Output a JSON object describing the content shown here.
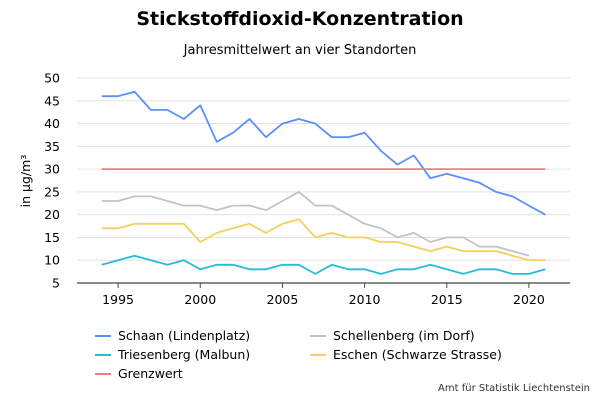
{
  "chart_data": {
    "type": "line",
    "title": "Stickstoffdioxid-Konzentration",
    "subtitle": "Jahresmittelwert an vier Standorten",
    "ylabel": "in µg/m³",
    "xlabel": "",
    "xlim": [
      1992.5,
      2022.5
    ],
    "ylim": [
      5,
      50
    ],
    "xticks": [
      1995,
      2000,
      2005,
      2010,
      2015,
      2020
    ],
    "yticks": [
      5,
      10,
      15,
      20,
      25,
      30,
      35,
      40,
      45,
      50
    ],
    "grid": true,
    "legend_position": "bottom",
    "series": [
      {
        "name": "Schaan (Lindenplatz)",
        "color": "#5b8ff9",
        "x": [
          1994,
          1995,
          1996,
          1997,
          1998,
          1999,
          2000,
          2001,
          2002,
          2003,
          2004,
          2005,
          2006,
          2007,
          2008,
          2009,
          2010,
          2011,
          2012,
          2013,
          2014,
          2015,
          2016,
          2017,
          2018,
          2019,
          2020,
          2021
        ],
        "values": [
          46,
          46,
          47,
          43,
          43,
          41,
          44,
          36,
          38,
          41,
          37,
          40,
          41,
          40,
          37,
          37,
          38,
          34,
          31,
          33,
          28,
          29,
          28,
          27,
          25,
          24,
          22,
          20
        ]
      },
      {
        "name": "Schellenberg (im Dorf)",
        "color": "#c3c3c3",
        "x": [
          1994,
          1995,
          1996,
          1997,
          1998,
          1999,
          2000,
          2001,
          2002,
          2003,
          2004,
          2005,
          2006,
          2007,
          2008,
          2009,
          2010,
          2011,
          2012,
          2013,
          2014,
          2015,
          2016,
          2017,
          2018,
          2019,
          2020
        ],
        "values": [
          23,
          23,
          24,
          24,
          23,
          22,
          22,
          21,
          22,
          22,
          21,
          23,
          25,
          22,
          22,
          20,
          18,
          17,
          15,
          16,
          14,
          15,
          15,
          13,
          13,
          12,
          11
        ]
      },
      {
        "name": "Triesenberg (Malbun)",
        "color": "#2bbbd8",
        "x": [
          1994,
          1995,
          1996,
          1997,
          1998,
          1999,
          2000,
          2001,
          2002,
          2003,
          2004,
          2005,
          2006,
          2007,
          2008,
          2009,
          2010,
          2011,
          2012,
          2013,
          2014,
          2015,
          2016,
          2017,
          2018,
          2019,
          2020,
          2021
        ],
        "values": [
          9,
          10,
          11,
          10,
          9,
          10,
          8,
          9,
          9,
          8,
          8,
          9,
          9,
          7,
          9,
          8,
          8,
          7,
          8,
          8,
          9,
          8,
          7,
          8,
          8,
          7,
          7,
          8
        ]
      },
      {
        "name": "Eschen (Schwarze Strasse)",
        "color": "#f5d060",
        "x": [
          1994,
          1995,
          1996,
          1997,
          1998,
          1999,
          2000,
          2001,
          2002,
          2003,
          2004,
          2005,
          2006,
          2007,
          2008,
          2009,
          2010,
          2011,
          2012,
          2013,
          2014,
          2015,
          2016,
          2017,
          2018,
          2019,
          2020,
          2021
        ],
        "values": [
          17,
          17,
          18,
          18,
          18,
          18,
          14,
          16,
          17,
          18,
          16,
          18,
          19,
          15,
          16,
          15,
          15,
          14,
          14,
          13,
          12,
          13,
          12,
          12,
          12,
          11,
          10,
          10
        ]
      },
      {
        "name": "Grenzwert",
        "color": "#f08080",
        "x": [
          1994,
          2021
        ],
        "values": [
          30,
          30
        ]
      }
    ]
  },
  "source": "Amt für Statistik Liechtenstein"
}
